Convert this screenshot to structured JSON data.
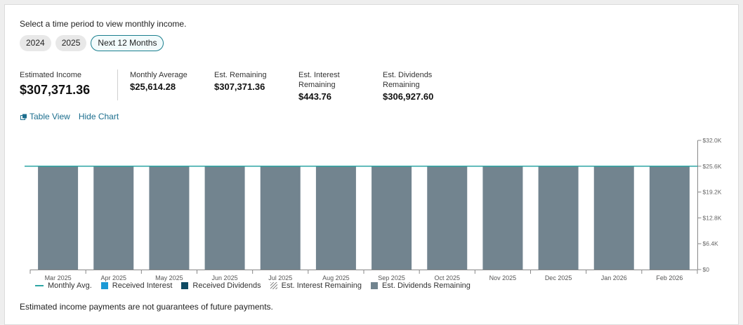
{
  "prompt": "Select a time period to view monthly income.",
  "periods": [
    {
      "label": "2024",
      "active": false
    },
    {
      "label": "2025",
      "active": false
    },
    {
      "label": "Next 12 Months",
      "active": true
    }
  ],
  "stats": {
    "estimated_income": {
      "label": "Estimated Income",
      "value": "$307,371.36"
    },
    "monthly_average": {
      "label": "Monthly Average",
      "value": "$25,614.28"
    },
    "est_remaining": {
      "label": "Est. Remaining",
      "value": "$307,371.36"
    },
    "est_interest_remaining": {
      "label": "Est. Interest Remaining",
      "value": "$443.76"
    },
    "est_dividends_remaining": {
      "label": "Est. Dividends Remaining",
      "value": "$306,927.60"
    }
  },
  "links": {
    "table_view": "Table View",
    "hide_chart": "Hide Chart"
  },
  "colors": {
    "accent": "#1c6e8e",
    "avg_line": "#2ea6a4",
    "received_interest": "#1c9ad6",
    "received_dividends": "#0e4a63",
    "est_dividends": "#72848f",
    "est_interest": "#555555"
  },
  "legend": [
    {
      "key": "avg",
      "label": "Monthly Avg."
    },
    {
      "key": "received_interest",
      "label": "Received Interest"
    },
    {
      "key": "received_dividends",
      "label": "Received Dividends"
    },
    {
      "key": "est_interest",
      "label": "Est. Interest Remaining"
    },
    {
      "key": "est_dividends",
      "label": "Est. Dividends Remaining"
    }
  ],
  "chart_data": {
    "type": "bar",
    "categories": [
      "Mar 2025",
      "Apr 2025",
      "May 2025",
      "Jun 2025",
      "Jul 2025",
      "Aug 2025",
      "Sep 2025",
      "Oct 2025",
      "Nov 2025",
      "Dec 2025",
      "Jan 2026",
      "Feb 2026"
    ],
    "series": [
      {
        "name": "Est. Dividends Remaining",
        "values": [
          25577.3,
          25577.3,
          25577.3,
          25577.3,
          25577.3,
          25577.3,
          25577.3,
          25577.3,
          25577.3,
          25577.3,
          25577.3,
          25577.3
        ]
      },
      {
        "name": "Est. Interest Remaining",
        "values": [
          37,
          37,
          37,
          37,
          37,
          37,
          37,
          37,
          37,
          37,
          37,
          37
        ]
      }
    ],
    "monthly_avg": 25614.28,
    "y_ticks": [
      "$0",
      "$6.4K",
      "$12.8K",
      "$19.2K",
      "$25.6K",
      "$32.0K"
    ],
    "ylim": [
      0,
      32000
    ],
    "y_axis_position": "right"
  },
  "disclaimer": "Estimated income payments are not guarantees of future payments."
}
